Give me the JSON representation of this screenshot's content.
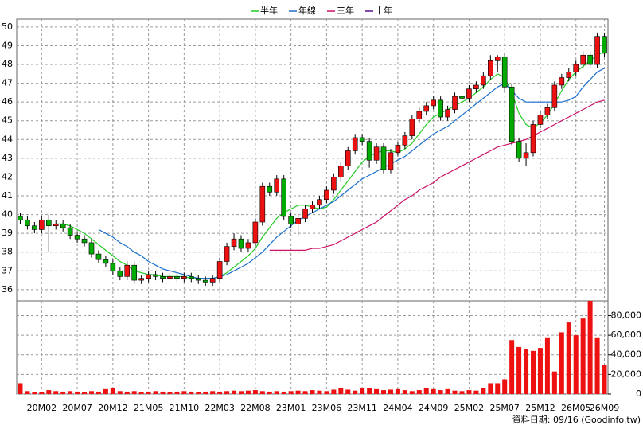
{
  "chart_data": [
    {
      "type": "candlestick",
      "legend": "top",
      "categories": [
        null,
        null,
        null,
        "20M02",
        null,
        null,
        null,
        null,
        "20M07",
        null,
        null,
        null,
        null,
        "20M12",
        null,
        null,
        null,
        null,
        "21M05",
        null,
        null,
        null,
        null,
        "21M10",
        null,
        null,
        null,
        null,
        "22M03",
        null,
        null,
        null,
        null,
        "22M08",
        null,
        null,
        null,
        null,
        "23M01",
        null,
        null,
        null,
        null,
        "23M06",
        null,
        null,
        null,
        null,
        "23M11",
        null,
        null,
        null,
        null,
        "24M04",
        null,
        null,
        null,
        null,
        "24M09",
        null,
        null,
        null,
        null,
        "25M02",
        null,
        null,
        null,
        null,
        "25M07",
        null,
        null,
        null,
        null,
        "25M12",
        null,
        null,
        null,
        null,
        "26M05",
        null,
        null,
        null,
        "26M09"
      ],
      "open": [
        39.9,
        39.7,
        39.4,
        39.2,
        39.7,
        39.4,
        39.5,
        39.3,
        38.9,
        38.7,
        38.5,
        37.9,
        37.6,
        37.4,
        37.0,
        36.7,
        37.3,
        36.5,
        36.6,
        36.8,
        36.7,
        36.6,
        36.7,
        36.6,
        36.7,
        36.6,
        36.5,
        36.4,
        36.6,
        37.5,
        38.3,
        38.7,
        38.2,
        38.5,
        39.6,
        41.5,
        41.2,
        41.9,
        39.9,
        39.5,
        39.8,
        40.3,
        40.5,
        40.8,
        41.3,
        42.0,
        42.6,
        43.4,
        44.1,
        43.9,
        42.9,
        43.6,
        42.4,
        43.3,
        43.7,
        44.2,
        45.1,
        45.5,
        45.8,
        46.1,
        45.2,
        45.6,
        46.3,
        46.2,
        46.7,
        46.9,
        47.4,
        48.2,
        48.4,
        46.8,
        43.9,
        43.0,
        43.3,
        44.8,
        45.3,
        45.7,
        46.9,
        47.3,
        47.6,
        48.0,
        48.5,
        48.0,
        49.5
      ],
      "high": [
        40.1,
        39.9,
        39.6,
        39.9,
        40.0,
        39.7,
        39.7,
        39.5,
        39.1,
        38.9,
        38.7,
        38.1,
        37.8,
        37.6,
        37.2,
        37.5,
        37.5,
        36.8,
        37.0,
        37.0,
        36.9,
        36.9,
        36.9,
        36.9,
        36.9,
        36.8,
        36.7,
        36.8,
        37.7,
        38.5,
        39.0,
        38.9,
        38.7,
        39.8,
        41.7,
        41.7,
        42.1,
        42.1,
        40.1,
        40.0,
        40.5,
        40.7,
        41.0,
        41.5,
        42.2,
        42.8,
        43.6,
        44.3,
        44.3,
        44.1,
        43.8,
        43.8,
        43.5,
        43.9,
        44.4,
        45.3,
        45.7,
        46.0,
        46.3,
        46.3,
        45.8,
        46.5,
        46.5,
        46.9,
        47.1,
        47.6,
        48.5,
        48.5,
        48.6,
        47.0,
        44.1,
        43.8,
        45.0,
        45.5,
        45.9,
        47.1,
        47.5,
        47.8,
        48.2,
        48.7,
        48.7,
        49.7,
        49.7
      ],
      "low": [
        39.5,
        39.2,
        39.0,
        39.0,
        38.0,
        39.2,
        39.1,
        38.7,
        38.5,
        38.3,
        37.7,
        37.4,
        37.2,
        36.8,
        36.5,
        36.5,
        36.3,
        36.3,
        36.4,
        36.5,
        36.4,
        36.4,
        36.4,
        36.4,
        36.4,
        36.3,
        36.2,
        36.2,
        36.4,
        37.3,
        38.1,
        38.0,
        38.0,
        38.3,
        39.4,
        41.0,
        41.0,
        39.7,
        39.3,
        38.9,
        39.6,
        40.1,
        40.3,
        40.6,
        41.1,
        41.8,
        42.4,
        43.2,
        43.7,
        42.5,
        42.7,
        42.2,
        42.2,
        43.1,
        43.5,
        44.0,
        44.9,
        45.3,
        45.6,
        45.0,
        45.0,
        45.4,
        46.0,
        46.0,
        46.5,
        46.7,
        47.2,
        47.6,
        46.5,
        43.7,
        42.8,
        42.6,
        43.1,
        44.6,
        45.1,
        45.5,
        46.7,
        47.1,
        47.4,
        47.8,
        47.8,
        47.8,
        48.4
      ],
      "close": [
        39.7,
        39.4,
        39.2,
        39.7,
        39.4,
        39.5,
        39.3,
        38.9,
        38.7,
        38.5,
        37.9,
        37.6,
        37.4,
        37.0,
        36.7,
        37.3,
        36.5,
        36.6,
        36.8,
        36.7,
        36.6,
        36.7,
        36.6,
        36.7,
        36.6,
        36.5,
        36.4,
        36.6,
        37.5,
        38.3,
        38.7,
        38.2,
        38.5,
        39.6,
        41.5,
        41.2,
        41.9,
        39.9,
        39.5,
        39.8,
        40.3,
        40.5,
        40.8,
        41.3,
        42.0,
        42.6,
        43.4,
        44.1,
        43.9,
        42.9,
        43.6,
        42.4,
        43.3,
        43.7,
        44.2,
        45.1,
        45.5,
        45.8,
        46.1,
        45.2,
        45.6,
        46.3,
        46.2,
        46.7,
        46.9,
        47.4,
        48.2,
        48.4,
        46.8,
        43.9,
        43.0,
        43.3,
        44.8,
        45.3,
        45.7,
        46.9,
        47.3,
        47.6,
        48.0,
        48.5,
        48.0,
        49.5,
        48.6
      ],
      "up_color": "#ee1111",
      "down_color": "#00aa00",
      "series": [
        {
          "name": "半年",
          "color": "#22cc22",
          "values": [
            null,
            null,
            null,
            null,
            null,
            39.5,
            39.5,
            39.4,
            39.2,
            39.0,
            38.7,
            38.4,
            38.1,
            37.8,
            37.5,
            37.3,
            37.0,
            36.9,
            36.8,
            36.8,
            36.7,
            36.7,
            36.7,
            36.7,
            36.6,
            36.6,
            36.6,
            36.6,
            36.7,
            36.9,
            37.2,
            37.5,
            37.8,
            38.2,
            38.8,
            39.3,
            39.8,
            40.1,
            40.3,
            40.5,
            40.5,
            40.4,
            40.3,
            40.4,
            40.8,
            41.3,
            41.8,
            42.3,
            42.8,
            43.1,
            43.3,
            43.4,
            43.4,
            43.3,
            43.5,
            43.8,
            44.3,
            44.8,
            45.2,
            45.4,
            45.6,
            45.8,
            46.0,
            46.2,
            46.5,
            46.8,
            47.2,
            47.5,
            47.3,
            46.5,
            45.4,
            44.8,
            44.6,
            44.9,
            45.3,
            45.9,
            46.6,
            47.2,
            47.6,
            47.9,
            48.2,
            48.5,
            48.7
          ]
        },
        {
          "name": "年線",
          "color": "#1a6fd0",
          "values": [
            null,
            null,
            null,
            null,
            null,
            null,
            null,
            null,
            null,
            null,
            null,
            39.2,
            39.0,
            38.8,
            38.5,
            38.3,
            38.0,
            37.8,
            37.5,
            37.3,
            37.1,
            37.0,
            36.9,
            36.8,
            36.7,
            36.6,
            36.6,
            36.6,
            36.7,
            36.8,
            37.0,
            37.2,
            37.4,
            37.7,
            38.0,
            38.4,
            38.8,
            39.1,
            39.4,
            39.7,
            39.9,
            40.1,
            40.3,
            40.5,
            40.7,
            41.0,
            41.3,
            41.6,
            41.9,
            42.1,
            42.3,
            42.5,
            42.7,
            42.9,
            43.1,
            43.4,
            43.7,
            44.0,
            44.3,
            44.5,
            44.7,
            45.0,
            45.3,
            45.6,
            45.9,
            46.2,
            46.5,
            46.8,
            47.0,
            46.6,
            46.2,
            46.0,
            46.0,
            46.0,
            46.0,
            46.0,
            46.0,
            46.1,
            46.3,
            46.8,
            47.2,
            47.6,
            47.8
          ]
        },
        {
          "name": "三年",
          "color": "#cc1166",
          "values": [
            null,
            null,
            null,
            null,
            null,
            null,
            null,
            null,
            null,
            null,
            null,
            null,
            null,
            null,
            null,
            null,
            null,
            null,
            null,
            null,
            null,
            null,
            null,
            null,
            null,
            null,
            null,
            null,
            null,
            null,
            null,
            null,
            null,
            null,
            null,
            38.1,
            38.1,
            38.1,
            38.1,
            38.1,
            38.1,
            38.2,
            38.2,
            38.3,
            38.4,
            38.6,
            38.8,
            39.0,
            39.2,
            39.4,
            39.6,
            39.9,
            40.2,
            40.5,
            40.8,
            41.0,
            41.3,
            41.5,
            41.7,
            42.0,
            42.2,
            42.4,
            42.6,
            42.8,
            43.0,
            43.2,
            43.4,
            43.6,
            43.7,
            43.8,
            43.9,
            44.0,
            44.2,
            44.4,
            44.6,
            44.8,
            45.0,
            45.2,
            45.4,
            45.6,
            45.8,
            46.0,
            46.1
          ]
        },
        {
          "name": "十年",
          "color": "#551188",
          "values": [
            null,
            null,
            null,
            null,
            null,
            null,
            null,
            null,
            null,
            null,
            null,
            null,
            null,
            null,
            null,
            null,
            null,
            null,
            null,
            null,
            null,
            null,
            null,
            null,
            null,
            null,
            null,
            null,
            null,
            null,
            null,
            null,
            null,
            null,
            null,
            null,
            null,
            null,
            null,
            null,
            null,
            null,
            null,
            null,
            null,
            null,
            null,
            null,
            null,
            null,
            null,
            null,
            null,
            null,
            null,
            null,
            null,
            null,
            null,
            null,
            null,
            null,
            null,
            null,
            null,
            null,
            null,
            null,
            null,
            null,
            null,
            null,
            null,
            null,
            null,
            null,
            null,
            null,
            null,
            null,
            null,
            null,
            null
          ]
        }
      ],
      "ylim": [
        35.4,
        50.42
      ],
      "yticks": [
        36,
        37,
        38,
        39,
        40,
        41,
        42,
        43,
        44,
        45,
        46,
        47,
        48,
        49,
        50
      ],
      "grid": true
    },
    {
      "type": "bar",
      "color": "#ee1111",
      "values": [
        11000,
        3000,
        2000,
        2000,
        4000,
        3000,
        2500,
        3000,
        2500,
        2000,
        3000,
        2500,
        5000,
        6000,
        3000,
        2500,
        3000,
        2000,
        2500,
        3000,
        2500,
        2000,
        2500,
        3000,
        2500,
        2000,
        2500,
        3000,
        2500,
        3000,
        3500,
        3000,
        3500,
        4000,
        3000,
        2500,
        3000,
        2500,
        3000,
        3500,
        3000,
        4000,
        3500,
        3000,
        4500,
        6000,
        4500,
        3500,
        6000,
        6500,
        5000,
        4000,
        4500,
        5000,
        4000,
        3000,
        4000,
        6000,
        5000,
        4000,
        5000,
        3500,
        3000,
        4000,
        3500,
        6000,
        11000,
        11000,
        15000,
        55000,
        48000,
        46000,
        44000,
        47000,
        57000,
        23000,
        63000,
        73000,
        60000,
        77000,
        95000,
        57000,
        30000
      ],
      "ylim": [
        0,
        95000
      ],
      "yticks": [
        0,
        {
          "value": 20000,
          "label": "20,000"
        },
        {
          "value": 40000,
          "label": "40,000"
        },
        {
          "value": 60000,
          "label": "60,000"
        },
        {
          "value": 80000,
          "label": "80,000"
        }
      ],
      "grid": true,
      "note": "資料日期: 09/16 (Goodinfo.tw)"
    }
  ]
}
